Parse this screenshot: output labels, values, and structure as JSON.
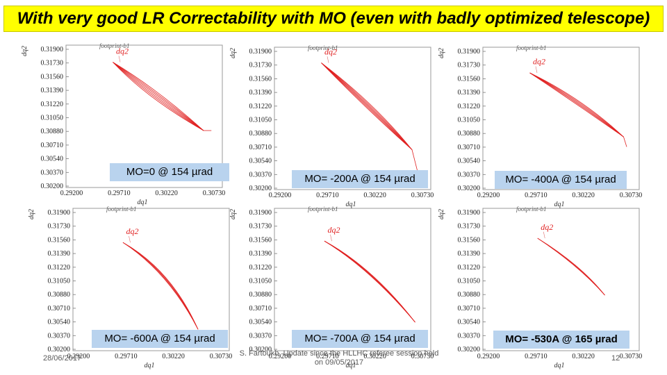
{
  "title": "With very good LR Correctability with MO (even with badly optimized telescope)",
  "colors": {
    "banner": "#ffff00",
    "label_bg": "#b9d3ee",
    "curve": "#e02020"
  },
  "axes": {
    "y_ticks": [
      "0.31900",
      "0.31730",
      "0.31560",
      "0.31390",
      "0.31220",
      "0.31050",
      "0.30880",
      "0.30710",
      "0.30540",
      "0.30370",
      "0.30200"
    ],
    "x_ticks": [
      "0.29200",
      "0.29710",
      "0.30220",
      "0.30730"
    ],
    "y_name": "dq2",
    "x_name": "dq1"
  },
  "plot_title": "footprint-b1",
  "curve_label": "dq2",
  "panels": [
    {
      "label": "MO=0 @ 154 µrad"
    },
    {
      "label": "MO= -200A @ 154 µrad"
    },
    {
      "label": "MO= -400A @ 154 µrad"
    },
    {
      "label": "MO= -600A @ 154 µrad"
    },
    {
      "label": "MO= -700A @ 154 µrad"
    },
    {
      "label": "MO= -530A @ 165 µrad"
    }
  ],
  "footer": {
    "date": "28/06/2017",
    "page": "12",
    "note": "S. Fartoukh, Update since the HLLHC referee session held on 09/05/2017"
  }
}
